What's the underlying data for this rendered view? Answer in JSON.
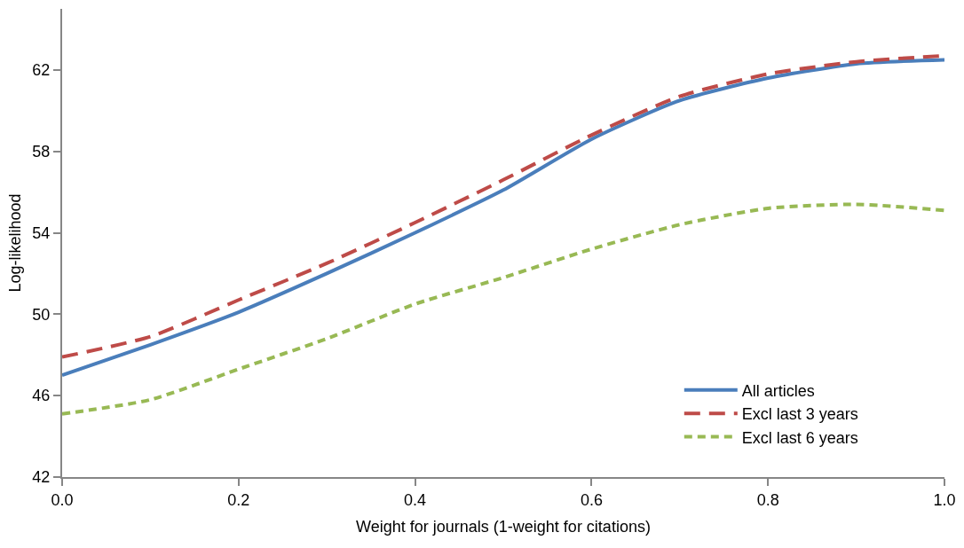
{
  "chart_data": {
    "type": "line",
    "xlabel": "Weight for journals (1-weight for citations)",
    "ylabel": "Log-likelihood",
    "x": [
      0,
      0.1,
      0.2,
      0.3,
      0.4,
      0.5,
      0.6,
      0.7,
      0.8,
      0.9,
      1.0
    ],
    "series": [
      {
        "name": "All articles",
        "color": "#4a7ebb",
        "line_style": "solid",
        "values": [
          47.0,
          48.5,
          50.1,
          52.0,
          54.0,
          56.1,
          58.6,
          60.5,
          61.6,
          62.3,
          62.5
        ]
      },
      {
        "name": "Excl last 3 years",
        "color": "#be4b48",
        "line_style": "dashed",
        "values": [
          47.9,
          48.9,
          50.7,
          52.5,
          54.5,
          56.6,
          58.8,
          60.7,
          61.8,
          62.4,
          62.7
        ]
      },
      {
        "name": "Excl last 6 years",
        "color": "#98b954",
        "line_style": "dotted",
        "values": [
          45.1,
          45.8,
          47.3,
          48.8,
          50.5,
          51.8,
          53.2,
          54.4,
          55.2,
          55.4,
          55.1
        ]
      }
    ],
    "xlim": [
      0,
      1
    ],
    "xticks": [
      {
        "value": 0,
        "label": "0.0"
      },
      {
        "value": 0.2,
        "label": "0.2"
      },
      {
        "value": 0.4,
        "label": "0.4"
      },
      {
        "value": 0.6,
        "label": "0.6"
      },
      {
        "value": 0.8,
        "label": "0.8"
      },
      {
        "value": 1.0,
        "label": "1.0"
      }
    ],
    "ylim": [
      42,
      65
    ],
    "yticks": [
      42,
      46,
      50,
      54,
      58,
      62
    ],
    "legend": "bottom right",
    "marker": "none"
  }
}
